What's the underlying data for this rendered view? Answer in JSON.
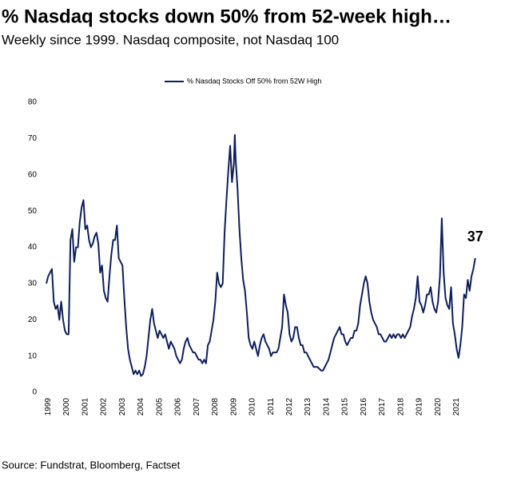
{
  "chart_data": {
    "type": "line",
    "title": "% Nasdaq stocks down 50% from 52-week high…",
    "subtitle": "Weekly since 1999. Nasdaq composite, not Nasdaq 100",
    "source": "Source: Fundstrat, Bloomberg, Factset",
    "annotation": "37",
    "annotation_color": "#1f3a80",
    "x": [
      1998.9,
      1999.0,
      1999.1,
      1999.2,
      1999.3,
      1999.4,
      1999.5,
      1999.6,
      1999.7,
      1999.8,
      1999.9,
      2000.0,
      2000.1,
      2000.2,
      2000.3,
      2000.4,
      2000.5,
      2000.6,
      2000.7,
      2000.8,
      2000.9,
      2001.0,
      2001.1,
      2001.2,
      2001.3,
      2001.4,
      2001.5,
      2001.6,
      2001.7,
      2001.8,
      2001.9,
      2002.0,
      2002.1,
      2002.2,
      2002.3,
      2002.4,
      2002.5,
      2002.6,
      2002.7,
      2002.8,
      2002.9,
      2003.0,
      2003.1,
      2003.2,
      2003.3,
      2003.4,
      2003.5,
      2003.6,
      2003.7,
      2003.8,
      2003.9,
      2004.0,
      2004.1,
      2004.2,
      2004.3,
      2004.4,
      2004.5,
      2004.6,
      2004.7,
      2004.8,
      2004.9,
      2005.0,
      2005.1,
      2005.2,
      2005.3,
      2005.4,
      2005.5,
      2005.6,
      2005.7,
      2005.8,
      2005.9,
      2006.0,
      2006.1,
      2006.2,
      2006.3,
      2006.4,
      2006.5,
      2006.6,
      2006.7,
      2006.8,
      2006.9,
      2007.0,
      2007.1,
      2007.2,
      2007.3,
      2007.4,
      2007.5,
      2007.6,
      2007.7,
      2007.8,
      2007.9,
      2008.0,
      2008.1,
      2008.2,
      2008.3,
      2008.4,
      2008.5,
      2008.6,
      2008.7,
      2008.8,
      2008.9,
      2009.0,
      2009.05,
      2009.1,
      2009.2,
      2009.3,
      2009.4,
      2009.5,
      2009.6,
      2009.7,
      2009.8,
      2009.9,
      2010.0,
      2010.1,
      2010.2,
      2010.3,
      2010.4,
      2010.5,
      2010.6,
      2010.7,
      2010.8,
      2010.9,
      2011.0,
      2011.1,
      2011.2,
      2011.3,
      2011.4,
      2011.5,
      2011.6,
      2011.7,
      2011.8,
      2011.9,
      2012.0,
      2012.1,
      2012.2,
      2012.3,
      2012.4,
      2012.5,
      2012.6,
      2012.7,
      2012.8,
      2012.9,
      2013.0,
      2013.1,
      2013.2,
      2013.3,
      2013.4,
      2013.5,
      2013.6,
      2013.7,
      2013.8,
      2013.9,
      2014.0,
      2014.1,
      2014.2,
      2014.3,
      2014.4,
      2014.5,
      2014.6,
      2014.7,
      2014.8,
      2014.9,
      2015.0,
      2015.1,
      2015.2,
      2015.3,
      2015.4,
      2015.5,
      2015.6,
      2015.7,
      2015.8,
      2015.9,
      2016.0,
      2016.1,
      2016.2,
      2016.3,
      2016.4,
      2016.5,
      2016.6,
      2016.7,
      2016.8,
      2016.9,
      2017.0,
      2017.1,
      2017.2,
      2017.3,
      2017.4,
      2017.5,
      2017.6,
      2017.7,
      2017.8,
      2017.9,
      2018.0,
      2018.1,
      2018.2,
      2018.3,
      2018.4,
      2018.5,
      2018.6,
      2018.7,
      2018.8,
      2018.9,
      2019.0,
      2019.1,
      2019.2,
      2019.3,
      2019.4,
      2019.5,
      2019.6,
      2019.7,
      2019.8,
      2019.9,
      2020.0,
      2020.1,
      2020.2,
      2020.3,
      2020.4,
      2020.5,
      2020.6,
      2020.7,
      2020.8,
      2020.9,
      2021.0,
      2021.1,
      2021.2,
      2021.3,
      2021.4,
      2021.5,
      2021.6,
      2021.7,
      2021.8,
      2021.9,
      2022.0
    ],
    "series": [
      {
        "name": "% Nasdaq Stocks Off 50% from 52W High",
        "color": "#0d1f5c",
        "values": [
          30,
          32,
          33,
          34,
          25,
          23,
          24,
          20,
          25,
          20,
          17,
          16,
          16,
          42,
          45,
          36,
          40,
          40,
          47,
          51,
          53,
          45,
          46,
          42,
          40,
          41,
          43,
          44,
          41,
          33,
          35,
          28,
          26,
          25,
          32,
          38,
          42,
          42,
          46,
          37,
          36,
          35,
          26,
          18,
          12,
          9,
          7,
          5,
          6,
          5,
          6,
          4.5,
          5,
          7,
          10,
          15,
          20,
          23,
          19,
          17,
          15,
          17,
          16,
          15,
          16,
          14,
          12,
          14,
          13,
          12,
          10,
          9,
          8,
          9,
          12,
          14,
          15,
          13,
          12,
          11,
          11,
          10,
          9,
          9,
          8,
          9,
          8,
          13,
          14,
          17,
          20,
          25,
          33,
          30,
          29,
          30,
          44,
          53,
          61,
          68,
          58,
          63,
          71,
          64,
          56,
          45,
          37,
          31,
          28,
          22,
          15,
          13,
          12,
          14,
          12,
          10,
          13,
          15,
          16,
          14,
          13,
          12,
          10,
          11,
          11,
          11,
          12,
          15,
          18,
          27,
          24,
          22,
          16,
          14,
          15,
          18,
          18,
          15,
          13,
          13,
          11,
          11,
          10,
          9,
          8,
          7,
          7,
          7,
          6.5,
          6,
          6,
          7,
          8,
          9,
          11,
          13,
          15,
          16,
          17,
          18,
          16,
          16,
          14,
          13,
          14,
          15,
          15,
          17,
          17,
          19,
          24,
          27,
          30,
          32,
          30,
          25,
          22,
          20,
          19,
          18,
          16,
          16,
          15,
          14,
          14,
          15,
          16,
          15,
          16,
          15,
          16,
          16,
          15,
          16,
          15,
          16,
          17,
          18,
          21,
          23,
          26,
          32,
          25,
          24,
          22,
          24,
          27,
          27,
          29,
          25,
          23,
          22,
          25,
          32,
          48,
          33,
          26,
          24,
          23,
          29,
          19,
          16,
          12,
          9.5,
          13,
          18,
          27,
          26,
          31,
          28,
          32,
          34,
          37
        ]
      }
    ],
    "xlim": [
      1998.9,
      2022.4
    ],
    "xticks": [
      1999,
      2000,
      2001,
      2002,
      2003,
      2004,
      2005,
      2006,
      2007,
      2008,
      2009,
      2010,
      2011,
      2012,
      2013,
      2014,
      2015,
      2016,
      2017,
      2018,
      2019,
      2020,
      2021
    ],
    "ylim": [
      0,
      80
    ],
    "yticks": [
      0,
      10,
      20,
      30,
      40,
      50,
      60,
      70,
      80
    ],
    "grid": false,
    "legend": "top"
  }
}
